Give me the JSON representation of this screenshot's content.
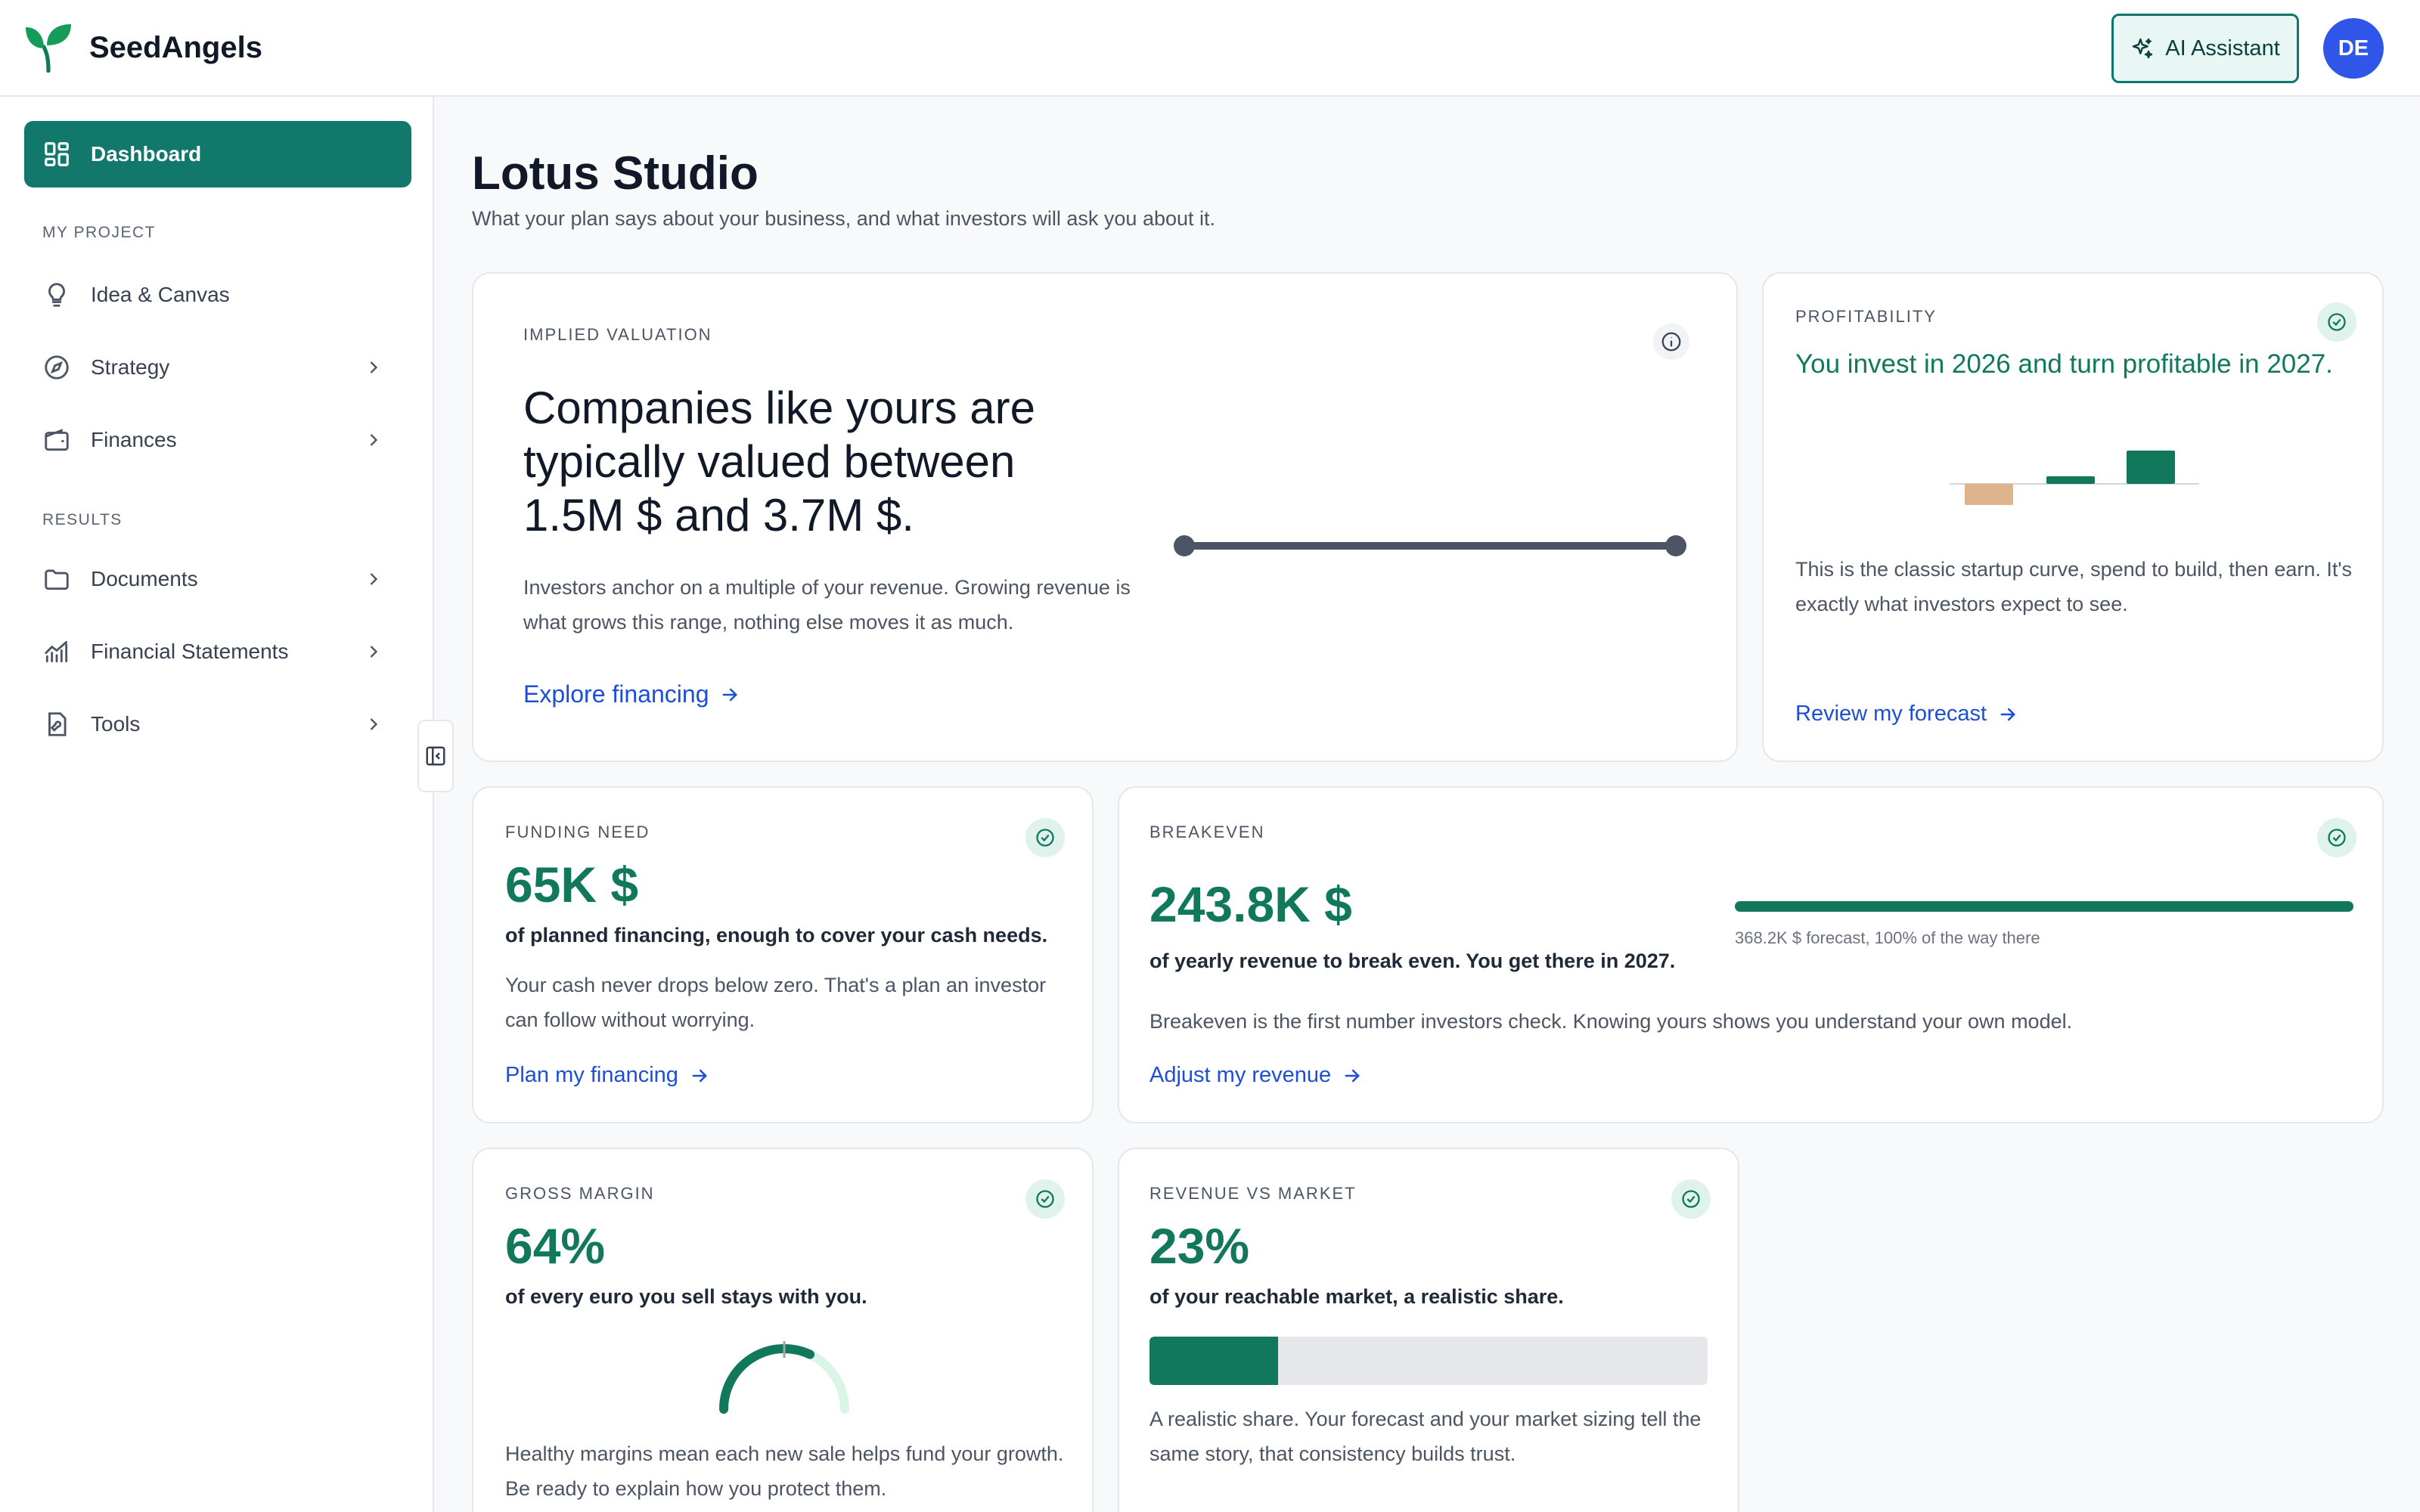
{
  "header": {
    "brand": "SeedAngels",
    "ai_button": "AI Assistant",
    "avatar_initials": "DE"
  },
  "sidebar": {
    "active": "Dashboard",
    "sections": [
      {
        "label": "MY PROJECT",
        "items": [
          "Idea & Canvas",
          "Strategy",
          "Finances"
        ]
      },
      {
        "label": "RESULTS",
        "items": [
          "Documents",
          "Financial Statements",
          "Tools"
        ]
      }
    ]
  },
  "page": {
    "title": "Lotus Studio",
    "subtitle": "What your plan says about your business, and what investors will ask you about it."
  },
  "valuation": {
    "kicker": "IMPLIED VALUATION",
    "headline": "Companies like yours are typically valued between 1.5M $ and 3.7M $.",
    "body": "Investors anchor on a multiple of your revenue. Growing revenue is what grows this range, nothing else moves it as much.",
    "link": "Explore financing"
  },
  "profitability": {
    "kicker": "PROFITABILITY",
    "headline": "You invest in 2026 and turn profitable in 2027.",
    "body": "This is the classic startup curve, spend to build, then earn. It's exactly what investors expect to see.",
    "link": "Review my forecast"
  },
  "funding": {
    "kicker": "FUNDING NEED",
    "value": "65K $",
    "lead": "of planned financing, enough to cover your cash needs.",
    "body": "Your cash never drops below zero. That's a plan an investor can follow without worrying.",
    "link": "Plan my financing"
  },
  "breakeven": {
    "kicker": "BREAKEVEN",
    "value": "243.8K $",
    "lead": "of yearly revenue to break even. You get there in 2027.",
    "progress_caption": "368.2K $ forecast, 100% of the way there",
    "progress_percent": 100,
    "body": "Breakeven is the first number investors check. Knowing yours shows you understand your own model.",
    "link": "Adjust my revenue"
  },
  "gross_margin": {
    "kicker": "GROSS MARGIN",
    "value": "64%",
    "gauge_percent": 64,
    "lead": "of every euro you sell stays with you.",
    "body": "Healthy margins mean each new sale helps fund your growth. Be ready to explain how you protect them."
  },
  "revenue_market": {
    "kicker": "REVENUE VS MARKET",
    "value": "23%",
    "bar_percent": 23,
    "lead": "of your reachable market, a realistic share.",
    "body": "A realistic share. Your forecast and your market sizing tell the same story, that consistency builds trust."
  },
  "colors": {
    "brand": "#11786b",
    "accent_green": "#11785c",
    "link_blue": "#1d4ed8",
    "avatar_blue": "#2f56e8",
    "loss_tan": "#deb48e"
  }
}
